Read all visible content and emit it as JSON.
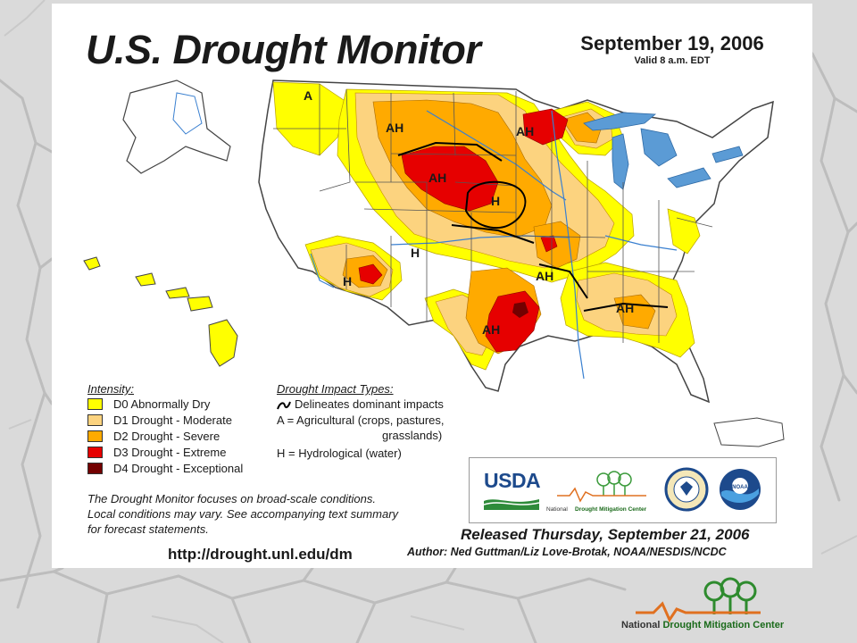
{
  "title": "U.S. Drought Monitor",
  "date": "September 19, 2006",
  "valid": "Valid 8 a.m. EDT",
  "intensity": {
    "heading": "Intensity:",
    "items": [
      {
        "label": "D0 Abnormally Dry",
        "color": "#ffff00"
      },
      {
        "label": "D1 Drought - Moderate",
        "color": "#fcd37f"
      },
      {
        "label": "D2 Drought - Severe",
        "color": "#ffaa00"
      },
      {
        "label": "D3 Drought - Extreme",
        "color": "#e60000"
      },
      {
        "label": "D4 Drought - Exceptional",
        "color": "#730000"
      }
    ]
  },
  "impact_types": {
    "heading": "Drought Impact Types:",
    "delineates": "Delineates dominant impacts",
    "agricultural": "A = Agricultural (crops, pastures,",
    "agricultural_cont": "grasslands)",
    "hydrological": "H = Hydrological (water)"
  },
  "note": [
    "The Drought Monitor focuses on broad-scale conditions.",
    "Local conditions may vary. See accompanying text summary",
    "for forecast statements."
  ],
  "url": "http://drought.unl.edu/dm",
  "released": "Released Thursday, September 21, 2006",
  "author": "Author: Ned Guttman/Liz Love-Brotak, NOAA/NESDIS/NCDC",
  "logos": {
    "usda": "USDA",
    "ndmc_national": "National",
    "ndmc_center": "Drought Mitigation Center",
    "noaa": "NOAA"
  },
  "map_labels": [
    "A",
    "AH",
    "AH",
    "AH",
    "H",
    "H",
    "H",
    "AH",
    "AH",
    "AH"
  ],
  "footer": {
    "national": "National",
    "center": "Drought Mitigation Center"
  },
  "colors": {
    "water": "#5b9bd5",
    "state_border": "#555555",
    "background": "#dcdcdc"
  }
}
